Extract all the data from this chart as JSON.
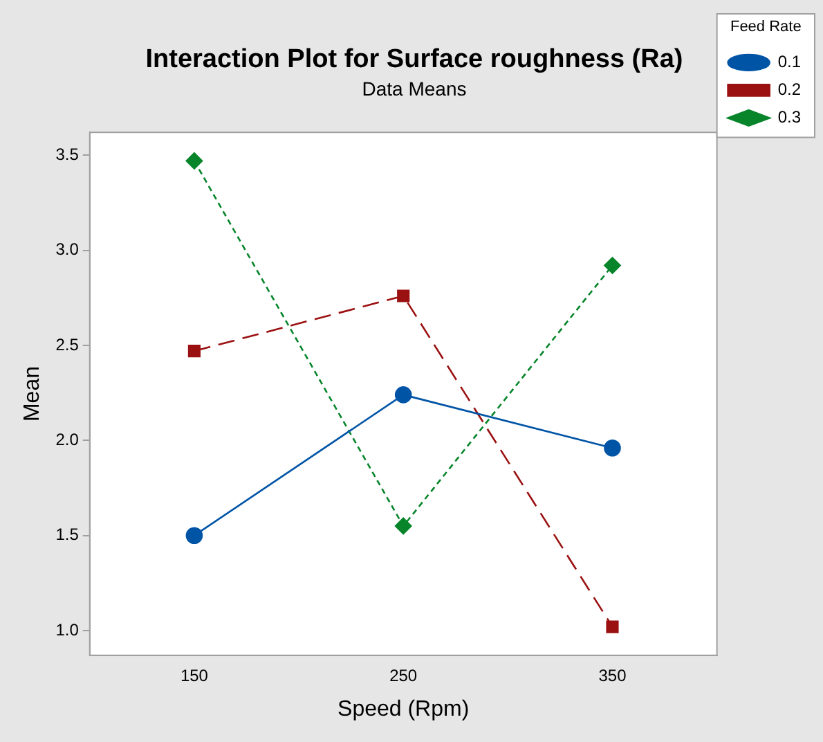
{
  "chart_data": {
    "type": "line",
    "title": "Interaction Plot for Surface roughness (Ra)",
    "subtitle": "Data Means",
    "xlabel": "Speed (Rpm)",
    "ylabel": "Mean",
    "legend_title": "Feed Rate",
    "x": [
      150,
      250,
      350
    ],
    "xlim": [
      100,
      400
    ],
    "xticks": [
      150,
      250,
      350
    ],
    "ylim": [
      0.87,
      3.62
    ],
    "yticks": [
      {
        "value": 1.0,
        "label": "1.0"
      },
      1.5,
      {
        "value": 2.0,
        "label": "2.0"
      },
      2.5,
      {
        "value": 3.0,
        "label": "3.0"
      },
      3.5
    ],
    "series": [
      {
        "name": "0.1",
        "color": "#0054a6",
        "values": [
          1.5,
          2.24,
          1.96
        ],
        "marker": "circle",
        "line_style": "solid"
      },
      {
        "name": "0.2",
        "color": "#9b1111",
        "values": [
          2.47,
          2.76,
          1.02
        ],
        "marker": "square",
        "line_style": "dashed"
      },
      {
        "name": "0.3",
        "color": "#08852b",
        "values": [
          3.47,
          1.55,
          2.92
        ],
        "marker": "diamond",
        "line_style": "dotted"
      }
    ],
    "legend": "top right",
    "grid": false
  }
}
